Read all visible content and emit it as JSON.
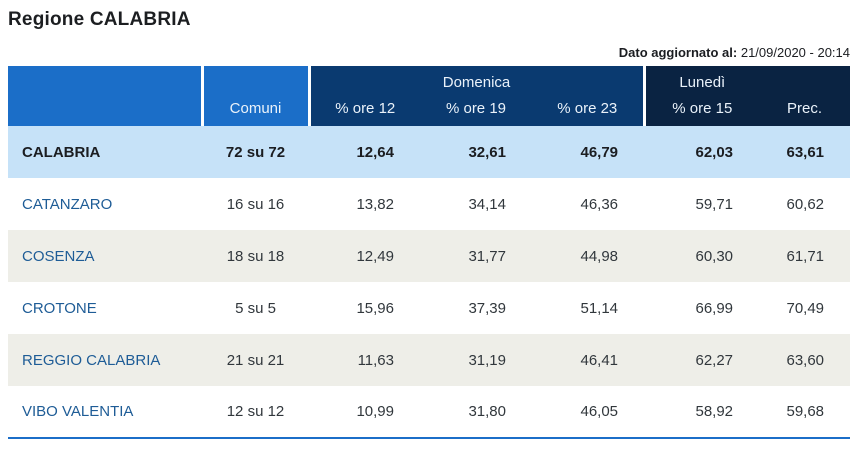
{
  "header": {
    "title": "Regione CALABRIA",
    "updated_label": "Dato aggiornato al:",
    "updated_value": "21/09/2020 - 20:14"
  },
  "table": {
    "col_comuni": "Comuni",
    "group_domenica": "Domenica",
    "group_lunedi": "Lunedì",
    "col_ore12": "% ore 12",
    "col_ore19": "% ore 19",
    "col_ore23": "% ore 23",
    "col_ore15": "% ore 15",
    "col_prec": "Prec.",
    "rows": [
      {
        "name": "CALABRIA",
        "comuni": "72 su 72",
        "ore12": "12,64",
        "ore19": "32,61",
        "ore23": "46,79",
        "ore15": "62,03",
        "prec": "63,61"
      },
      {
        "name": "CATANZARO",
        "comuni": "16 su 16",
        "ore12": "13,82",
        "ore19": "34,14",
        "ore23": "46,36",
        "ore15": "59,71",
        "prec": "60,62"
      },
      {
        "name": "COSENZA",
        "comuni": "18 su 18",
        "ore12": "12,49",
        "ore19": "31,77",
        "ore23": "44,98",
        "ore15": "60,30",
        "prec": "61,71"
      },
      {
        "name": "CROTONE",
        "comuni": "5 su 5",
        "ore12": "15,96",
        "ore19": "37,39",
        "ore23": "51,14",
        "ore15": "66,99",
        "prec": "70,49"
      },
      {
        "name": "REGGIO CALABRIA",
        "comuni": "21 su 21",
        "ore12": "11,63",
        "ore19": "31,19",
        "ore23": "46,41",
        "ore15": "62,27",
        "prec": "63,60"
      },
      {
        "name": "VIBO VALENTIA",
        "comuni": "12 su 12",
        "ore12": "10,99",
        "ore19": "31,80",
        "ore23": "46,05",
        "ore15": "58,92",
        "prec": "59,68"
      }
    ]
  },
  "colors": {
    "primary_blue": "#1b6ec8",
    "navy_group": "#0a3a70",
    "dark_navy_group": "#0a2342",
    "total_row_bg": "#c6e2f8",
    "alt_row_bg": "#eeeee8",
    "province_link": "#1e5c96",
    "value_text": "#31373c",
    "bottom_border": "#1b6ec8"
  }
}
